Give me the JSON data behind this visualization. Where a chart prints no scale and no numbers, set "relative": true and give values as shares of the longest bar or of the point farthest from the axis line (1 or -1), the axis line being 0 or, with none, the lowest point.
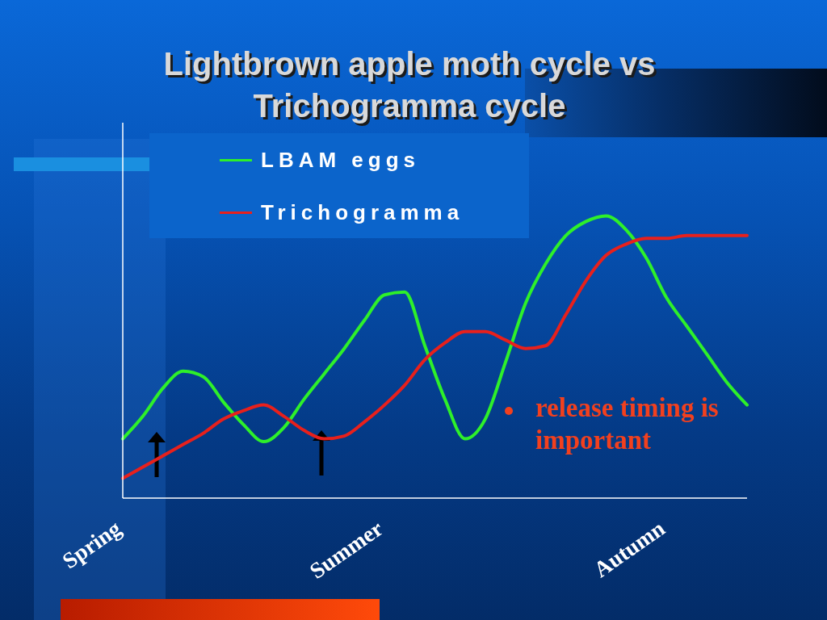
{
  "chart_data": {
    "type": "line",
    "title": "Lightbrown apple moth cycle vs Trichogramma cycle",
    "categories": [
      "Spring",
      null,
      null,
      null,
      null,
      null,
      null,
      null,
      null,
      null,
      null,
      null,
      null,
      "Summer",
      null,
      null,
      null,
      null,
      null,
      null,
      null,
      null,
      null,
      null,
      null,
      null,
      null,
      "Autumn",
      null,
      null,
      null,
      null
    ],
    "relative": true,
    "series": [
      {
        "name": "LBAM eggs",
        "color": "#2ef02a",
        "values": [
          0.21,
          0.29,
          0.39,
          0.45,
          0.43,
          0.34,
          0.26,
          0.2,
          0.25,
          0.35,
          0.44,
          0.53,
          0.63,
          0.72,
          0.73,
          0.54,
          0.35,
          0.21,
          0.28,
          0.48,
          0.69,
          0.83,
          0.93,
          0.98,
          1.0,
          0.95,
          0.85,
          0.71,
          0.61,
          0.51,
          0.41,
          0.33
        ]
      },
      {
        "name": "Trichogramma",
        "color": "#e8201c",
        "values": [
          0.07,
          0.11,
          0.15,
          0.19,
          0.23,
          0.28,
          0.31,
          0.33,
          0.29,
          0.24,
          0.21,
          0.22,
          0.27,
          0.33,
          0.4,
          0.49,
          0.55,
          0.59,
          0.59,
          0.56,
          0.53,
          0.54,
          0.65,
          0.77,
          0.86,
          0.9,
          0.92,
          0.92,
          0.93,
          0.93,
          0.93,
          0.93
        ]
      }
    ],
    "legend": "top left",
    "annotations": [
      "release timing is important"
    ]
  }
}
